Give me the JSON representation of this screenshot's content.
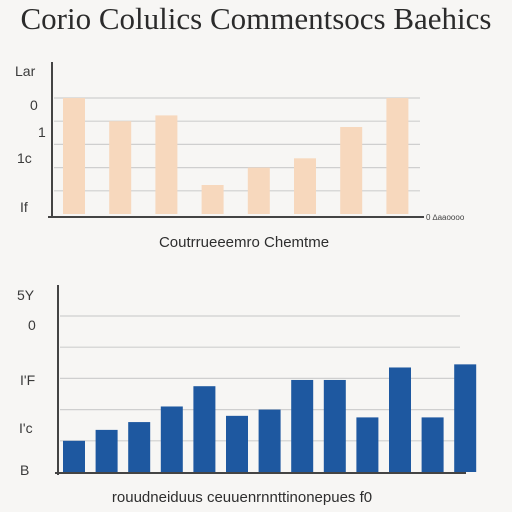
{
  "page": {
    "title": "Corio Colulics Commentsocs Baehics"
  },
  "chart_data": [
    {
      "type": "bar",
      "title": "Coutrrueeemro Chemtme",
      "tick_labels": [
        "Lar",
        "0",
        "1",
        "1c",
        "If"
      ],
      "x_end_label": "0 ∆aaoooo",
      "ylim": [
        0,
        100
      ],
      "grid": true,
      "bar_color": "#f7d8bd",
      "grid_color": "#cfcfcf",
      "values": [
        100,
        80,
        85,
        25,
        40,
        48,
        75,
        100
      ]
    },
    {
      "type": "bar",
      "title": "rouudneiduus ceuuenrnnttinonepues f0",
      "tick_labels": [
        "5Y",
        "0",
        "I'F",
        "I'c",
        "B"
      ],
      "ylim": [
        0,
        100
      ],
      "grid": true,
      "bar_color": "#1e58a0",
      "grid_color": "#cfcfcf",
      "values": [
        20,
        27,
        32,
        42,
        55,
        36,
        40,
        59,
        59,
        35,
        67,
        35,
        69
      ]
    }
  ]
}
